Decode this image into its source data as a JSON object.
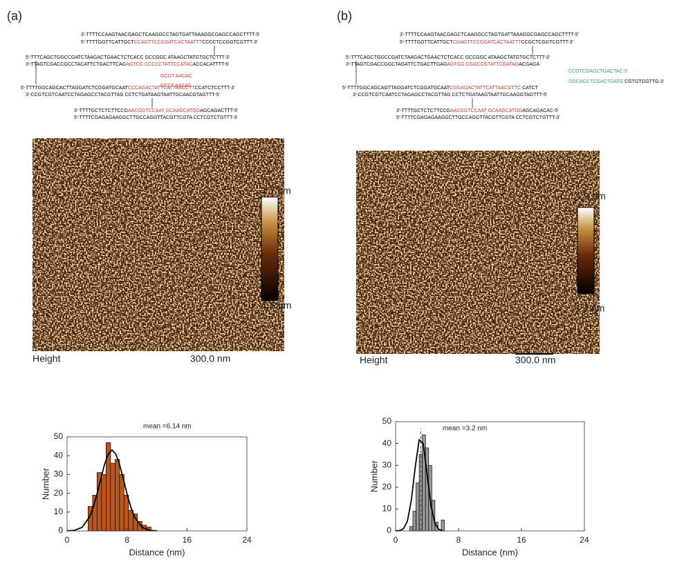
{
  "panels": [
    {
      "label": "(a)",
      "sequences": [
        [
          {
            "text": "3'-TTTTCCAAGTAACGAGCTCAAGGCCTAGTGATTAAAGGCGAGCCAGCTTTT-5'",
            "color": "#000000"
          }
        ],
        [
          {
            "text": "5'-TTTTGGTTCATTGCT",
            "color": "#000000"
          },
          {
            "text": "CCAGTTCCGGATCACTAATTT",
            "color": "#c0392b"
          },
          {
            "text": "CCCCTCCGGTCGTTT-3'",
            "color": "#000000"
          }
        ],
        [
          {
            "text": "5'-TTTCAGCTGGCCGATCTAAGACTGAACTCTCACC GCCGGC ATAAGCTATGTGCTCTTT-3'",
            "color": "#000000"
          }
        ],
        [
          {
            "text": "3'-TTAGTCGACCGCCTACATTCTGACTTCAG",
            "color": "#000000"
          },
          {
            "text": "AGTCG CCCCCTATTCCATAC",
            "color": "#c0392b"
          },
          {
            "text": "ACCACATTTT-5'",
            "color": "#000000"
          }
        ],
        [
          {
            "text": "5'-TTTTGGCAGCACTTAGGATCTCGGATGCAAT",
            "color": "#000000"
          },
          {
            "text": "CCCAGACTATTCATTAACCTT",
            "color": "#c0392b"
          },
          {
            "text": "CCATCTCCTTT-3'",
            "color": "#000000"
          }
        ],
        [
          {
            "text": "3'-CCGTCGTCAATCCTAGAGCCTACGTTAG CCTCTGATAAGTAATTGCAACGTAGTTT-5'",
            "color": "#000000"
          }
        ],
        [
          {
            "text": "3'-TTTTGCTCTCTTCCG",
            "color": "#000000"
          },
          {
            "text": "AACGGTCCAAT GCAAGCATGG",
            "color": "#c0392b"
          },
          {
            "text": "AGCAGACTTT-5'",
            "color": "#000000"
          }
        ],
        [
          {
            "text": "5'-TTTTCGAGAGAAGGCTTGCCAGGTTACGTTCGTA CCTCGTCTGTTT-3'",
            "color": "#000000"
          }
        ],
        [
          {
            "text": "GCGT AACAC",
            "color": "#c0392b"
          }
        ],
        [
          {
            "text": "CCCT AACAC",
            "color": "#c0392b"
          }
        ]
      ],
      "afm": {
        "scale_max": "1.7 nm",
        "scale_min": "-1.5 nm",
        "channel": "Height",
        "scale_bar": "300.0 nm"
      }
    },
    {
      "label": "(b)",
      "sequences": [
        [
          {
            "text": "3'-TTTTCCAAGTAACGAGCTCAAGGCCTAGTGATTAAAGGCGAGCCAGCTTTT-5'",
            "color": "#000000"
          }
        ],
        [
          {
            "text": "5'-TTTTGGTTCATTGCT",
            "color": "#000000"
          },
          {
            "text": "CGAGTTCCGGATCACTAATTT",
            "color": "#c0392b"
          },
          {
            "text": "CCGCTCGGTCGTTT-3'",
            "color": "#000000"
          }
        ],
        [
          {
            "text": "5'-TTTCAGCTGGCCGATCTAAGACTGAACTCTCACC GCCGGC ATAAGCTATGTGCTCTTT-3'",
            "color": "#000000"
          }
        ],
        [
          {
            "text": "3'-TTAGTCGACCGGCTAGATTCTGACTTGAG",
            "color": "#000000"
          },
          {
            "text": "AGTGG CGGCCGTATTCGATAG",
            "color": "#c0392b"
          },
          {
            "text": "ACGAGA",
            "color": "#000000"
          }
        ],
        [
          {
            "text": "CCGTCGAGCTGACTAC-5'",
            "color": "#2e9e6e"
          }
        ],
        [
          {
            "text": "GGCAGCTCGACTGATG",
            "color": "#2e9e6e"
          },
          {
            "text": " CGTGTGGTTG-3'",
            "color": "#000000"
          }
        ],
        [
          {
            "text": "5'-TTTTGGCAGCAGTTAGGATCTCGGATGCAAT",
            "color": "#000000"
          },
          {
            "text": "CGGAGACTATTCATTAACGTTC",
            "color": "#c0392b"
          },
          {
            "text": " CATCT",
            "color": "#000000"
          }
        ],
        [
          {
            "text": "3'-CCGTCGTCAATCCTAGAGCCTACGTTAG CCTCTGATAAGTAATTGCAAGGTAGTTT-5'",
            "color": "#000000"
          }
        ],
        [
          {
            "text": "3'-TTTTGCTCTCTTCCG",
            "color": "#000000"
          },
          {
            "text": "AACGGTCCAAT GCAAGCATGG",
            "color": "#c0392b"
          },
          {
            "text": "AGCAGACAC-5'",
            "color": "#000000"
          }
        ],
        [
          {
            "text": "5'-TTTTCGAGAGAAGGCTTGCCAGGTTACGTTCGTA CCTCGTCTGTTT-3'",
            "color": "#000000"
          }
        ]
      ],
      "afm": {
        "scale_max": "1.9 nm",
        "scale_min": "-1.7 nm",
        "channel": "Height",
        "scale_bar": "300.0 nm"
      }
    }
  ],
  "chart_data": [
    {
      "type": "histogram",
      "xlabel": "Distance (nm)",
      "ylabel": "Number",
      "annotation": "mean =6.14 nm",
      "annotation_color": "#c0622a",
      "bins": [
        2.8,
        3.4,
        4.0,
        4.6,
        5.2,
        5.8,
        6.4,
        7.0,
        7.6,
        8.2,
        8.8,
        9.4,
        10.0,
        10.6,
        11.2
      ],
      "values": [
        13,
        19,
        31,
        30,
        47,
        36,
        38,
        30,
        19,
        11,
        9,
        5,
        3,
        2
      ],
      "color": "#b8561e",
      "fit": {
        "x": [
          0,
          1,
          2,
          3,
          3.5,
          4,
          4.5,
          5,
          5.5,
          6,
          6.5,
          7,
          7.5,
          8,
          8.5,
          9,
          10,
          11,
          12
        ],
        "values": [
          0.04,
          0.33,
          1.9,
          7.4,
          12.7,
          19.7,
          27.7,
          35.4,
          40.9,
          43,
          40.9,
          35.4,
          27.7,
          19.7,
          12.7,
          7.4,
          1.9,
          0.33,
          0.04
        ],
        "color": "#000000"
      },
      "xlim": [
        0,
        24
      ],
      "ylim": [
        0,
        50
      ],
      "xticks": [
        0,
        8,
        16,
        24
      ],
      "yticks": [
        0,
        10,
        20,
        30,
        40,
        50
      ]
    },
    {
      "type": "histogram",
      "xlabel": "Distance (nm)",
      "ylabel": "Number",
      "annotation": "mean =3.2 nm",
      "annotation_color": "#777777",
      "bins": [
        1.8,
        2.2,
        2.6,
        3.0,
        3.4,
        3.8,
        4.2,
        4.6,
        5.0,
        5.4,
        5.8,
        6.2
      ],
      "values": [
        2,
        9,
        22,
        35,
        44,
        38,
        30,
        14,
        4,
        0,
        5
      ],
      "color": "#999999",
      "fit": {
        "x": [
          0,
          0.5,
          1,
          1.5,
          2,
          2.5,
          3,
          3.5,
          4,
          4.5,
          5,
          5.5,
          6
        ],
        "values": [
          0.01,
          0.14,
          0.98,
          4.5,
          14.0,
          29.3,
          41.7,
          40.1,
          26.1,
          11.5,
          3.4,
          0.69,
          0.09
        ],
        "color": "#000000"
      },
      "mean_line": 3.2,
      "xlim": [
        0,
        24
      ],
      "ylim": [
        0,
        50
      ],
      "xticks": [
        0,
        8,
        16,
        24
      ],
      "yticks": [
        0,
        10,
        20,
        30,
        40,
        50
      ]
    }
  ]
}
